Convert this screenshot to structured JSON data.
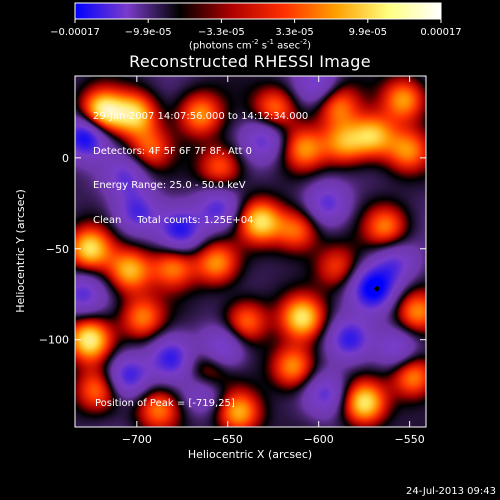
{
  "colorbar": {
    "tick_labels": [
      "-0.00017",
      "-9.9e-05",
      "-3.3e-05",
      "3.3e-05",
      "9.9e-05",
      "0.00017"
    ],
    "units_main": "(photons cm",
    "units_exp1": "-2",
    "units_mid": " s",
    "units_exp2": "-1",
    "units_mid2": " asec",
    "units_exp3": "-2",
    "units_end": ")",
    "colors": [
      "#0000ff",
      "#7b3ccb",
      "#000000",
      "#b00000",
      "#ff3000",
      "#ffa000",
      "#ffff80",
      "#ffffff"
    ]
  },
  "title": "Reconstructed RHESSI Image",
  "info": {
    "line1": "29-Jan-2007 14:07:56.000 to 14:12:34.000",
    "line2": "Detectors: 4F 5F 6F 7F 8F, Att 0",
    "line3": "Energy Range: 25.0 - 50.0 keV",
    "line4": "Clean     Total counts: 1.25E+04"
  },
  "peak_label": "Position of Peak = [-719,25]",
  "timestamp": "24-Jul-2013 09:43",
  "chart_data": {
    "type": "heatmap",
    "title": "Reconstructed RHESSI Image",
    "xlabel": "Heliocentric X (arcsec)",
    "ylabel": "Heliocentric Y (arcsec)",
    "xlim": [
      -734,
      -541
    ],
    "ylim": [
      -148,
      45
    ],
    "x_ticks": [
      -700,
      -650,
      -600,
      -550
    ],
    "y_ticks": [
      0,
      -50,
      -100
    ],
    "x_tick_labels": [
      "−700",
      "−650",
      "−600",
      "−550"
    ],
    "y_tick_labels": [
      "0",
      "−50",
      "−100"
    ],
    "colorbar_range": [
      -0.00017,
      0.00017
    ],
    "marker": {
      "x": -568,
      "y": -72
    },
    "hot_spots": [
      {
        "x": -719,
        "y": 25,
        "v": 1.0
      },
      {
        "x": -701,
        "y": 24,
        "v": 0.8
      },
      {
        "x": -665,
        "y": 24,
        "v": 0.65
      },
      {
        "x": -624,
        "y": 27,
        "v": 0.6
      },
      {
        "x": -590,
        "y": 29,
        "v": 0.6
      },
      {
        "x": -570,
        "y": 12,
        "v": 0.75
      },
      {
        "x": -608,
        "y": 5,
        "v": 0.6
      },
      {
        "x": -586,
        "y": 8,
        "v": 0.65
      },
      {
        "x": -553,
        "y": 32,
        "v": 0.7
      },
      {
        "x": -551,
        "y": 4,
        "v": 0.6
      },
      {
        "x": -654,
        "y": -5,
        "v": 0.55
      },
      {
        "x": -632,
        "y": -35,
        "v": 0.85
      },
      {
        "x": -612,
        "y": -40,
        "v": 0.6
      },
      {
        "x": -563,
        "y": -38,
        "v": 0.6
      },
      {
        "x": -726,
        "y": -50,
        "v": 0.85
      },
      {
        "x": -704,
        "y": -62,
        "v": 0.75
      },
      {
        "x": -680,
        "y": -60,
        "v": 0.6
      },
      {
        "x": -656,
        "y": -58,
        "v": 0.65
      },
      {
        "x": -697,
        "y": -88,
        "v": 0.6
      },
      {
        "x": -726,
        "y": -100,
        "v": 0.95
      },
      {
        "x": -640,
        "y": -90,
        "v": 0.6
      },
      {
        "x": -609,
        "y": -88,
        "v": 0.85
      },
      {
        "x": -614,
        "y": -115,
        "v": 0.7
      },
      {
        "x": -575,
        "y": -135,
        "v": 0.9
      },
      {
        "x": -548,
        "y": -120,
        "v": 0.7
      },
      {
        "x": -546,
        "y": -85,
        "v": 0.6
      },
      {
        "x": -688,
        "y": -138,
        "v": 0.6
      },
      {
        "x": -644,
        "y": -140,
        "v": 0.75
      },
      {
        "x": -661,
        "y": -118,
        "v": 0.55
      },
      {
        "x": -722,
        "y": -128,
        "v": 0.55
      },
      {
        "x": -693,
        "y": 5,
        "v": 0.5
      },
      {
        "x": -590,
        "y": -60,
        "v": 0.45
      }
    ],
    "cold_spots": [
      {
        "x": -728,
        "y": 12,
        "v": -0.9
      },
      {
        "x": -706,
        "y": -10,
        "v": -0.5
      },
      {
        "x": -630,
        "y": 10,
        "v": -0.55
      },
      {
        "x": -676,
        "y": -40,
        "v": -0.7
      },
      {
        "x": -655,
        "y": -28,
        "v": -0.6
      },
      {
        "x": -700,
        "y": -30,
        "v": -0.6
      },
      {
        "x": -595,
        "y": -25,
        "v": -0.55
      },
      {
        "x": -570,
        "y": -72,
        "v": -0.9
      },
      {
        "x": -583,
        "y": -100,
        "v": -0.7
      },
      {
        "x": -558,
        "y": -58,
        "v": -0.5
      },
      {
        "x": -653,
        "y": -105,
        "v": -0.6
      },
      {
        "x": -681,
        "y": -110,
        "v": -0.65
      },
      {
        "x": -705,
        "y": -120,
        "v": -0.7
      },
      {
        "x": -663,
        "y": -128,
        "v": -0.5
      },
      {
        "x": -596,
        "y": -130,
        "v": -0.55
      },
      {
        "x": -557,
        "y": -105,
        "v": -0.5
      },
      {
        "x": -730,
        "y": -75,
        "v": -0.55
      },
      {
        "x": -600,
        "y": 40,
        "v": -0.5
      }
    ]
  }
}
